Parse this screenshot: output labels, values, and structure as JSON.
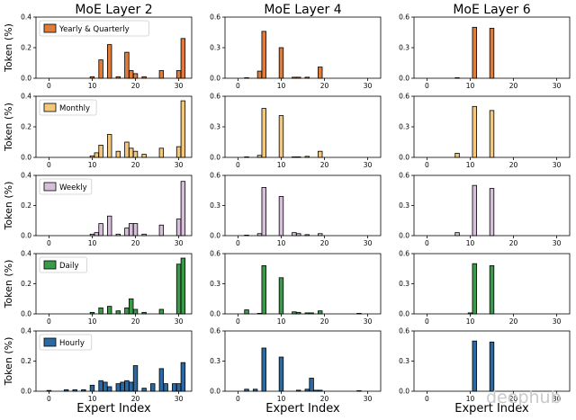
{
  "chart_data": {
    "type": "bar",
    "col_titles": [
      "MoE Layer 2",
      "MoE Layer 4",
      "MoE Layer 6"
    ],
    "xlabel": "Expert Index",
    "ylabel": "Token (%)",
    "xticks": [
      0,
      10,
      20,
      30
    ],
    "xlim": [
      -3,
      33
    ],
    "watermark": "deephub",
    "rows": [
      {
        "legend": "Yearly & Quarterly",
        "color": "#e07b39",
        "ylim": [
          0,
          0.4
        ],
        "yticks": [
          "0.0",
          "0.2",
          "0.4"
        ],
        "panels": [
          {
            "x": [
              10,
              12,
              14,
              16,
              18,
              19,
              20,
              22,
              26,
              30,
              31
            ],
            "y": [
              0.01,
              0.12,
              0.22,
              0.01,
              0.17,
              0.05,
              0.03,
              0.01,
              0.05,
              0.05,
              0.26
            ]
          },
          {
            "x": [
              2,
              5,
              6,
              10,
              13,
              14,
              16,
              19
            ],
            "y": [
              0.005,
              0.07,
              0.46,
              0.3,
              0.01,
              0.01,
              0.01,
              0.11
            ]
          },
          {
            "x": [
              7,
              11,
              15
            ],
            "y": [
              0.005,
              0.5,
              0.49
            ]
          }
        ]
      },
      {
        "legend": "Monthly",
        "color": "#f4c87a",
        "ylim": [
          0,
          0.4
        ],
        "yticks": [
          "0.0",
          "0.2",
          "0.4"
        ],
        "panels": [
          {
            "x": [
              10,
              11,
              12,
              14,
              16,
              18,
              19,
              20,
              22,
              26,
              30,
              31
            ],
            "y": [
              0.01,
              0.03,
              0.08,
              0.15,
              0.04,
              0.1,
              0.06,
              0.04,
              0.02,
              0.06,
              0.07,
              0.37
            ]
          },
          {
            "x": [
              2,
              5,
              6,
              10,
              13,
              14,
              16,
              19
            ],
            "y": [
              0.005,
              0.02,
              0.48,
              0.41,
              0.005,
              0.005,
              0.01,
              0.06
            ]
          },
          {
            "x": [
              7,
              11,
              15
            ],
            "y": [
              0.04,
              0.5,
              0.46
            ]
          }
        ]
      },
      {
        "legend": "Weekly",
        "color": "#d7bfdc",
        "ylim": [
          0,
          0.4
        ],
        "yticks": [
          "0.0",
          "0.2",
          "0.4"
        ],
        "panels": [
          {
            "x": [
              10,
              11,
              12,
              14,
              16,
              18,
              19,
              20,
              22,
              26,
              30,
              31
            ],
            "y": [
              0.01,
              0.02,
              0.08,
              0.13,
              0.01,
              0.05,
              0.08,
              0.08,
              0.01,
              0.07,
              0.11,
              0.36
            ]
          },
          {
            "x": [
              2,
              5,
              6,
              10,
              13,
              14,
              16,
              19
            ],
            "y": [
              0.005,
              0.02,
              0.48,
              0.39,
              0.03,
              0.02,
              0.01,
              0.02
            ]
          },
          {
            "x": [
              7,
              11,
              15
            ],
            "y": [
              0.03,
              0.5,
              0.47
            ]
          }
        ]
      },
      {
        "legend": "Daily",
        "color": "#3a9a48",
        "ylim": [
          0,
          0.4
        ],
        "yticks": [
          "0.0",
          "0.2",
          "0.4"
        ],
        "panels": [
          {
            "x": [
              10,
              12,
              14,
              16,
              18,
              19,
              20,
              22,
              26,
              30,
              31
            ],
            "y": [
              0.01,
              0.04,
              0.05,
              0.02,
              0.04,
              0.1,
              0.03,
              0.01,
              0.03,
              0.33,
              0.37
            ]
          },
          {
            "x": [
              2,
              5,
              6,
              10,
              13,
              14,
              16,
              17,
              19,
              28
            ],
            "y": [
              0.04,
              0.005,
              0.48,
              0.36,
              0.02,
              0.015,
              0.01,
              0.01,
              0.03,
              0.005
            ]
          },
          {
            "x": [
              10,
              11,
              15
            ],
            "y": [
              0.01,
              0.5,
              0.48
            ]
          }
        ]
      },
      {
        "legend": "Hourly",
        "color": "#2a69a3",
        "ylim": [
          0,
          0.4
        ],
        "yticks": [
          "0.0",
          "0.2",
          "0.4"
        ],
        "panels": [
          {
            "x": [
              0,
              4,
              6,
              8,
              10,
              12,
              13,
              14,
              16,
              17,
              18,
              19,
              20,
              22,
              24,
              26,
              27,
              29,
              30,
              31
            ],
            "y": [
              0.005,
              0.01,
              0.01,
              0.01,
              0.04,
              0.07,
              0.06,
              0.03,
              0.05,
              0.06,
              0.07,
              0.06,
              0.17,
              0.02,
              0.05,
              0.15,
              0.05,
              0.05,
              0.05,
              0.19
            ]
          },
          {
            "x": [
              2,
              4,
              6,
              10,
              14,
              16,
              17,
              18,
              19,
              28
            ],
            "y": [
              0.02,
              0.02,
              0.43,
              0.34,
              0.01,
              0.02,
              0.13,
              0.01,
              0.01,
              0.005
            ]
          },
          {
            "x": [
              11,
              15
            ],
            "y": [
              0.5,
              0.49
            ]
          }
        ]
      }
    ],
    "column_ranges": [
      {
        "ylim": [
          0,
          0.4
        ],
        "yticks": [
          "0.0",
          "0.2",
          "0.4"
        ]
      },
      {
        "ylim": [
          0,
          0.6
        ],
        "yticks": [
          "0.0",
          "0.3",
          "0.6"
        ]
      },
      {
        "ylim": [
          0,
          0.6
        ],
        "yticks": [
          "0.0",
          "0.3",
          "0.6"
        ]
      }
    ]
  }
}
